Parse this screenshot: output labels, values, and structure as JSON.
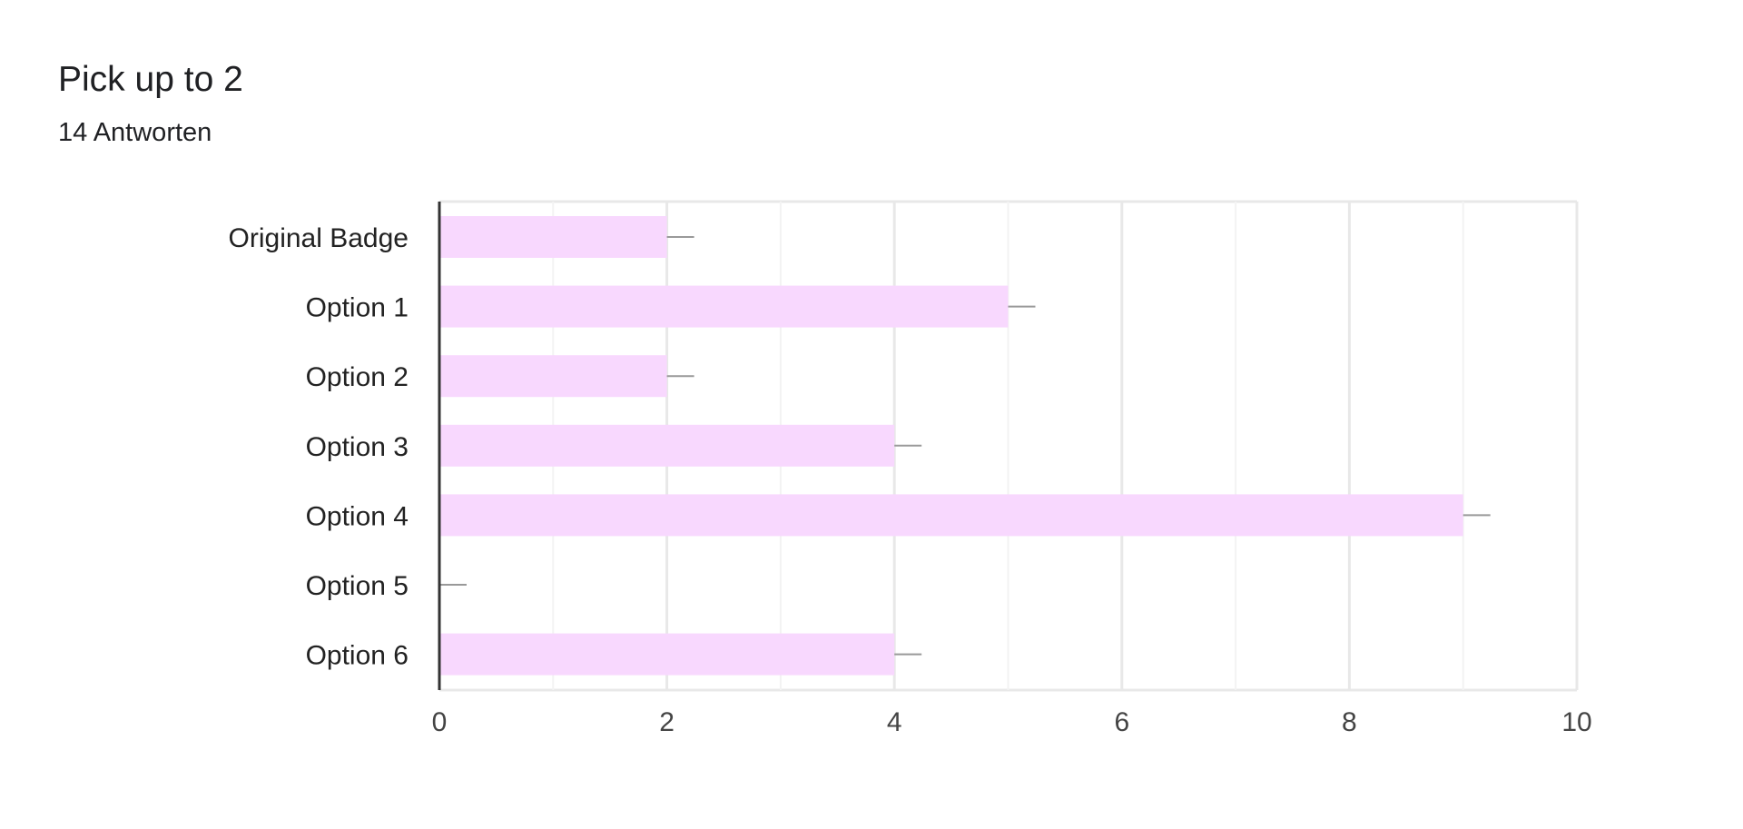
{
  "header": {
    "title": "Pick up to 2",
    "subtitle": "14 Antworten"
  },
  "colors": {
    "bar": "#f8d8fe",
    "axis": "#333333",
    "grid_major": "#e8e8e8",
    "grid_minor": "#f3f3f3",
    "whisker": "#999999"
  },
  "chart_data": {
    "type": "bar",
    "orientation": "horizontal",
    "title": "Pick up to 2",
    "subtitle": "14 Antworten",
    "categories": [
      "Original Badge",
      "Option 1",
      "Option 2",
      "Option 3",
      "Option 4",
      "Option 5",
      "Option 6"
    ],
    "values": [
      2,
      5,
      2,
      4,
      9,
      0,
      4
    ],
    "xlim": [
      0,
      10
    ],
    "xticks": [
      0,
      2,
      4,
      6,
      8,
      10
    ],
    "minor_grid": [
      1,
      3,
      5,
      7,
      9
    ],
    "xlabel": "",
    "ylabel": "",
    "grid": true,
    "legend": "none"
  }
}
